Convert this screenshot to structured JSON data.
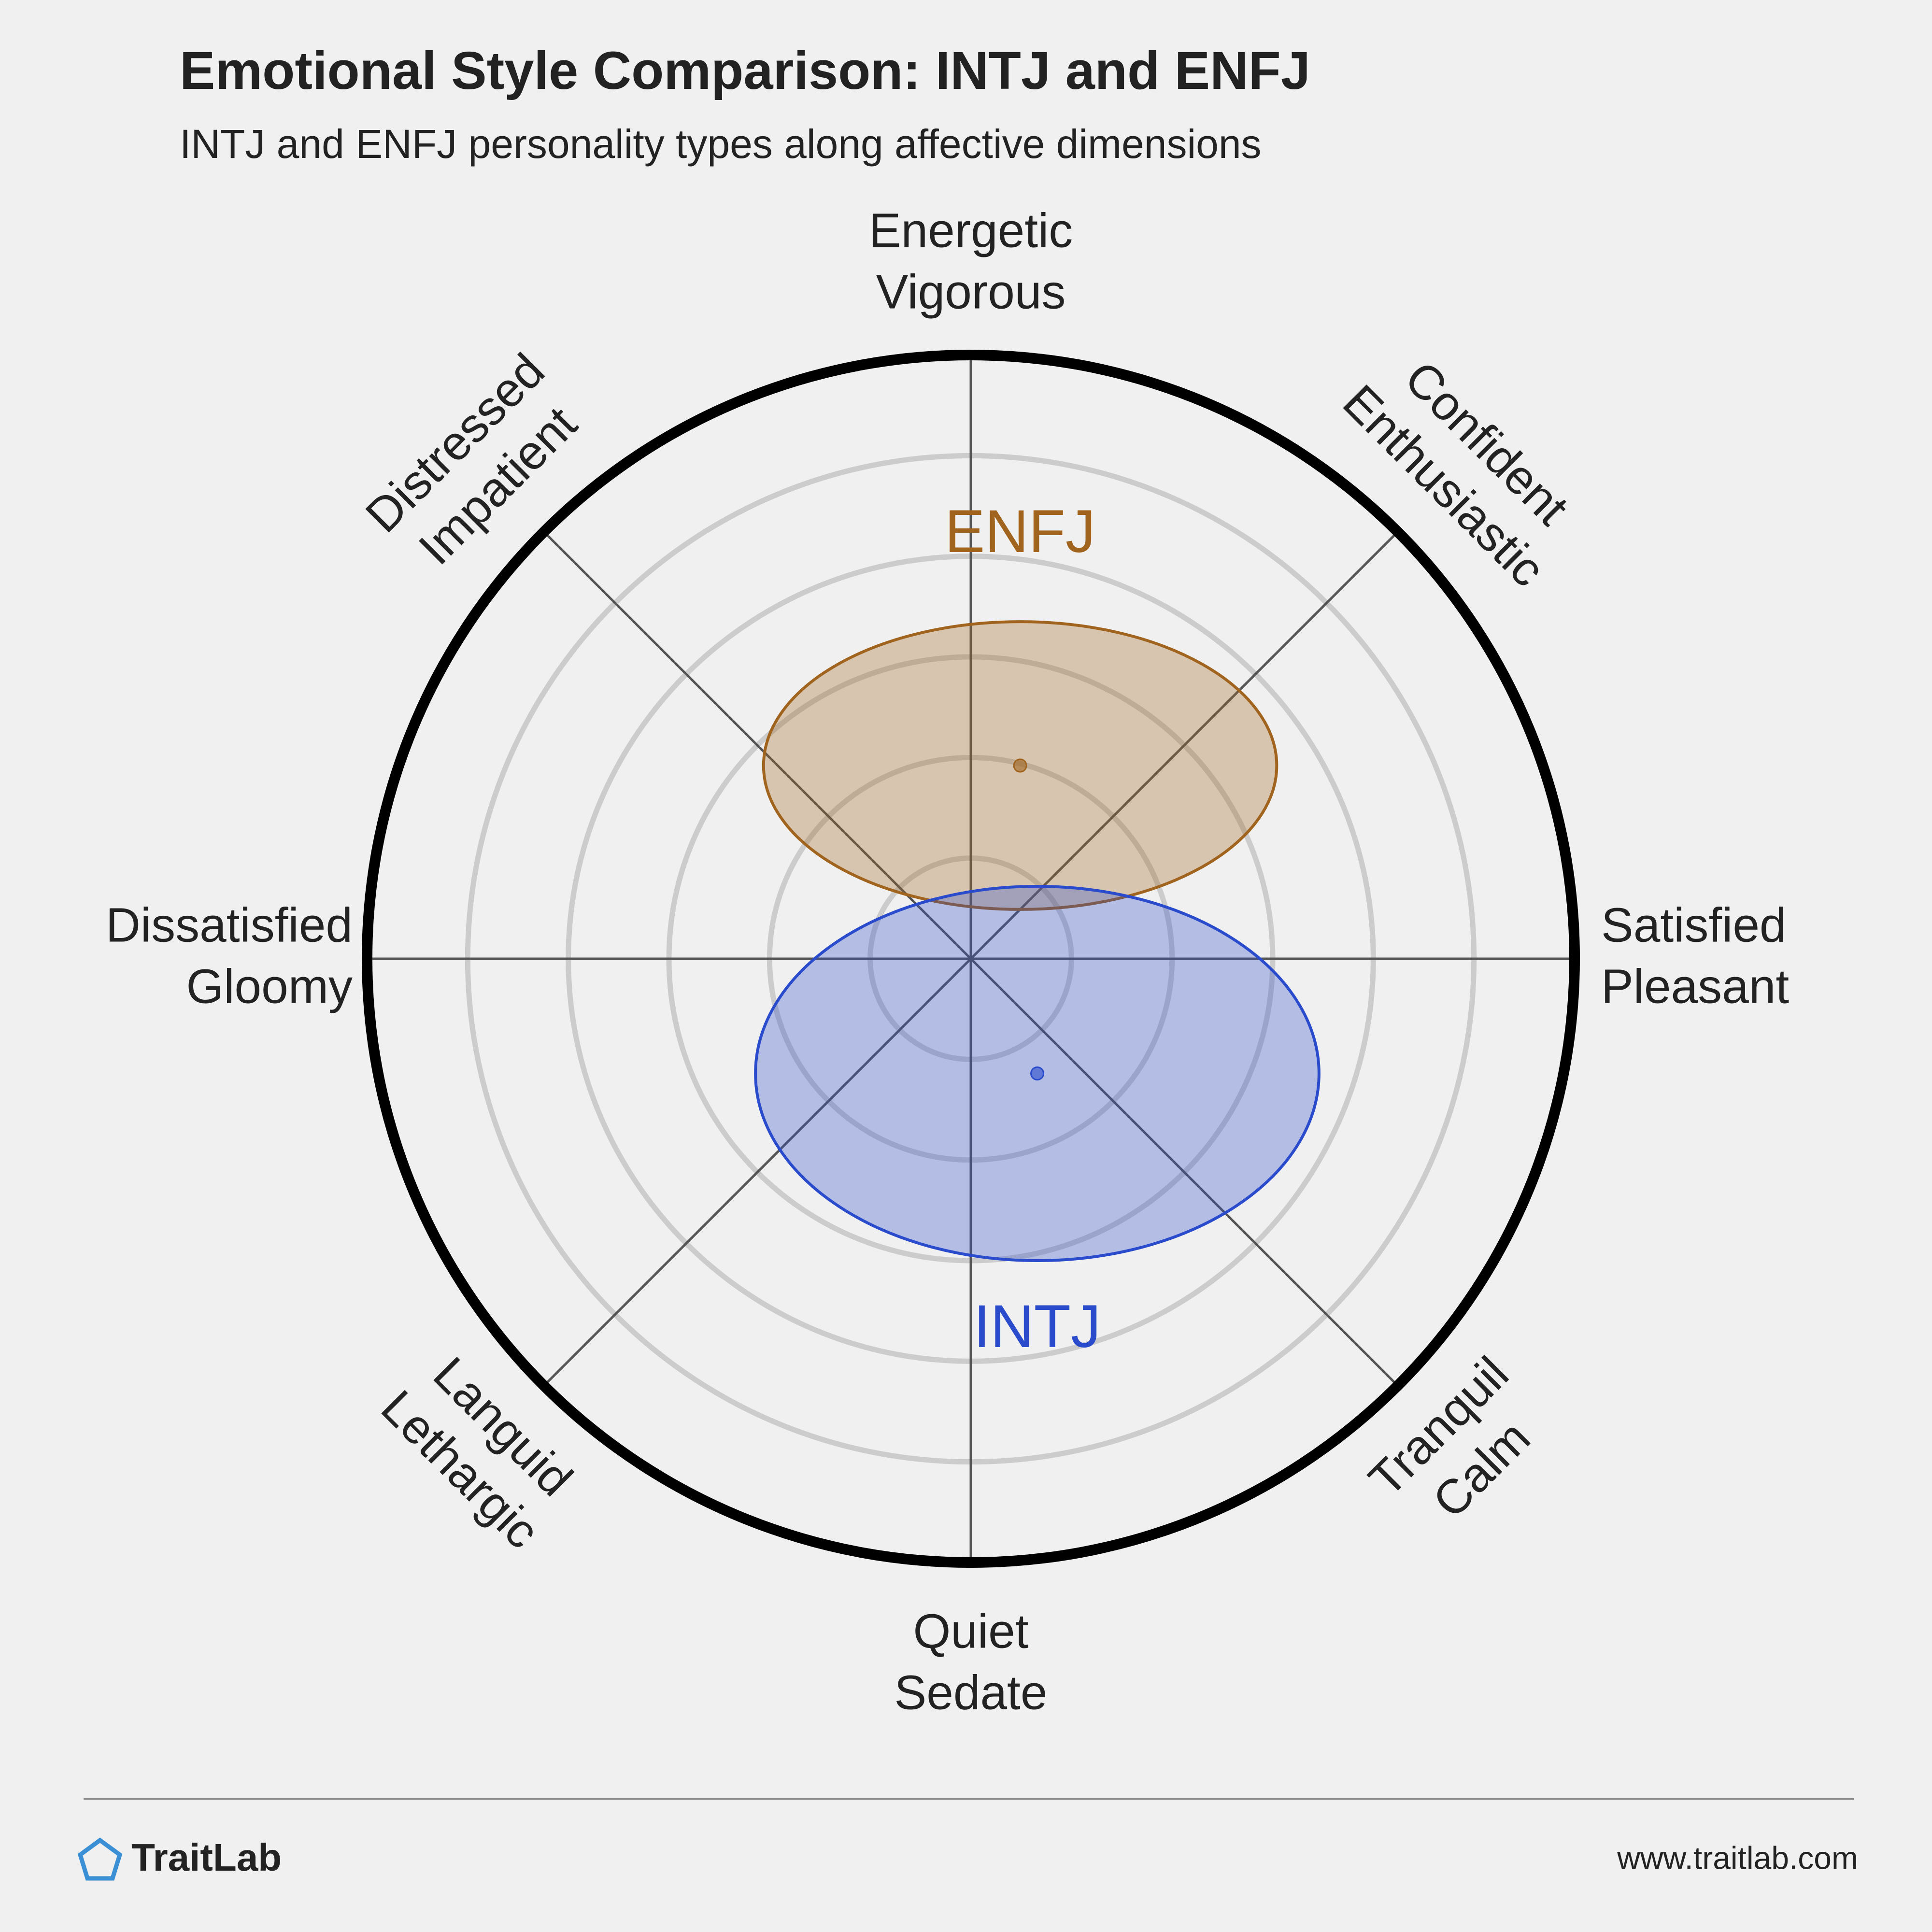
{
  "title": "Emotional Style Comparison: INTJ and ENFJ",
  "subtitle": "INTJ and ENFJ personality types along affective dimensions",
  "chart_data": {
    "type": "circumplex",
    "xlim": [
      -6,
      6
    ],
    "ylim": [
      -6,
      6
    ],
    "rings": [
      1,
      2,
      3,
      4,
      5
    ],
    "axis_labels": [
      [
        "Energetic",
        "Vigorous"
      ],
      [
        "Confident",
        "Enthusiastic"
      ],
      [
        "Satisfied",
        "Pleasant"
      ],
      [
        "Tranquil",
        "Calm"
      ],
      [
        "Quiet",
        "Sedate"
      ],
      [
        "Languid",
        "Lethargic"
      ],
      [
        "Dissatisfied",
        "Gloomy"
      ],
      [
        "Distressed",
        "Impatient"
      ]
    ],
    "series": [
      {
        "name": "ENFJ",
        "color": "#a0641e",
        "x": 0.49,
        "y": 1.92,
        "rx": 2.55,
        "ry": 1.43
      },
      {
        "name": "INTJ",
        "color": "#2a4bcc",
        "x": 0.66,
        "y": -1.14,
        "rx": 2.8,
        "ry": 1.86
      }
    ]
  },
  "footer": {
    "brand": "TraitLab",
    "url": "www.traitlab.com"
  }
}
